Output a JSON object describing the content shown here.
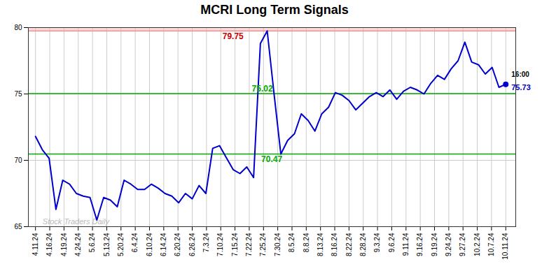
{
  "chart_data": {
    "type": "line",
    "title": "MCRI Long Term Signals",
    "x": [
      0,
      0.4783,
      0.9565,
      1.4348,
      1.913,
      2.3913,
      2.8696,
      3.3478,
      3.8261,
      4.3043,
      4.7826,
      5.2609,
      5.7391,
      6.2174,
      6.6957,
      7.1739,
      7.6522,
      8.1304,
      8.6087,
      9.087,
      9.5652,
      10.0435,
      10.5217,
      11,
      11.4783,
      11.9565,
      12.4348,
      12.913,
      13.3913,
      13.8696,
      14.3478,
      14.8261,
      15.3043,
      15.7826,
      16.2609,
      16.7391,
      17.2174,
      17.6957,
      18.1739,
      18.6522,
      19.1304,
      19.6087,
      20.087,
      20.5652,
      21.0435,
      21.5217,
      22,
      22.4783,
      22.9565,
      23.4348,
      23.913,
      24.3913,
      24.8696,
      25.3478,
      25.8261,
      26.3043,
      26.7826,
      27.2609,
      27.7391,
      28.2174,
      28.6957,
      29.1739,
      29.6522,
      30.1304,
      30.6087,
      31.087,
      31.5652,
      32.0435,
      32.5217,
      33
    ],
    "values": [
      71.8,
      70.8,
      70.15,
      66.3,
      68.5,
      68.2,
      67.5,
      67.3,
      67.2,
      65.5,
      67.2,
      67.0,
      66.5,
      68.5,
      68.2,
      67.8,
      67.8,
      68.2,
      67.9,
      67.5,
      67.3,
      66.8,
      67.5,
      67.1,
      68.1,
      67.5,
      70.9,
      71.1,
      70.2,
      69.3,
      69.0,
      69.5,
      68.7,
      78.8,
      79.75,
      75.02,
      70.47,
      71.5,
      72.0,
      73.5,
      73.0,
      72.2,
      73.5,
      74.0,
      75.1,
      74.9,
      74.5,
      73.8,
      74.3,
      74.8,
      75.1,
      74.8,
      75.3,
      74.6,
      75.2,
      75.5,
      75.3,
      75.0,
      75.8,
      76.4,
      76.1,
      76.9,
      77.5,
      78.9,
      77.4,
      77.2,
      76.5,
      77.0,
      75.5,
      75.73
    ],
    "color": "#0000cc",
    "xlim": [
      -0.5,
      33.7
    ],
    "xticks": [
      {
        "value": 0,
        "label": "4.11.24"
      },
      {
        "value": 1,
        "label": "4.16.24"
      },
      {
        "value": 2,
        "label": "4.19.24"
      },
      {
        "value": 3,
        "label": "4.24.24"
      },
      {
        "value": 4,
        "label": "5.6.24"
      },
      {
        "value": 5,
        "label": "5.13.24"
      },
      {
        "value": 6,
        "label": "5.20.24"
      },
      {
        "value": 7,
        "label": "6.4.24"
      },
      {
        "value": 8,
        "label": "6.10.24"
      },
      {
        "value": 9,
        "label": "6.14.24"
      },
      {
        "value": 10,
        "label": "6.20.24"
      },
      {
        "value": 11,
        "label": "6.26.24"
      },
      {
        "value": 12,
        "label": "7.3.24"
      },
      {
        "value": 13,
        "label": "7.10.24"
      },
      {
        "value": 14,
        "label": "7.15.24"
      },
      {
        "value": 15,
        "label": "7.22.24"
      },
      {
        "value": 16,
        "label": "7.25.24"
      },
      {
        "value": 17,
        "label": "7.30.24"
      },
      {
        "value": 18,
        "label": "8.5.24"
      },
      {
        "value": 19,
        "label": "8.8.24"
      },
      {
        "value": 20,
        "label": "8.13.24"
      },
      {
        "value": 21,
        "label": "8.16.24"
      },
      {
        "value": 22,
        "label": "8.22.24"
      },
      {
        "value": 23,
        "label": "8.28.24"
      },
      {
        "value": 24,
        "label": "9.3.24"
      },
      {
        "value": 25,
        "label": "9.6.24"
      },
      {
        "value": 26,
        "label": "9.11.24"
      },
      {
        "value": 27,
        "label": "9.16.24"
      },
      {
        "value": 28,
        "label": "9.19.24"
      },
      {
        "value": 29,
        "label": "9.24.24"
      },
      {
        "value": 30,
        "label": "9.27.24"
      },
      {
        "value": 31,
        "label": "10.2.24"
      },
      {
        "value": 32,
        "label": "10.7.24"
      },
      {
        "value": 33,
        "label": "10.11.24"
      }
    ],
    "ylim": [
      65,
      80
    ],
    "yticks": [
      65,
      70,
      75,
      80
    ],
    "grid": true,
    "band": {
      "from": 79.75,
      "to": 80,
      "color": "#ffdddd"
    },
    "hlines": [
      {
        "value": 79.75,
        "color": "#ff8888",
        "label": "79.75",
        "label_color": "#cc0000"
      },
      {
        "value": 75.02,
        "color": "#00aa00",
        "label": "75.02",
        "label_color": "#00aa00"
      },
      {
        "value": 70.47,
        "color": "#00aa00",
        "label": "70.47",
        "label_color": "#00aa00"
      }
    ],
    "endpoint": {
      "value": 75.73,
      "label": "75.73",
      "note": "16:00",
      "color": "#0000cc"
    },
    "watermark": {
      "text": "Stock Traders Daily",
      "color": "#aaaaaa"
    }
  }
}
